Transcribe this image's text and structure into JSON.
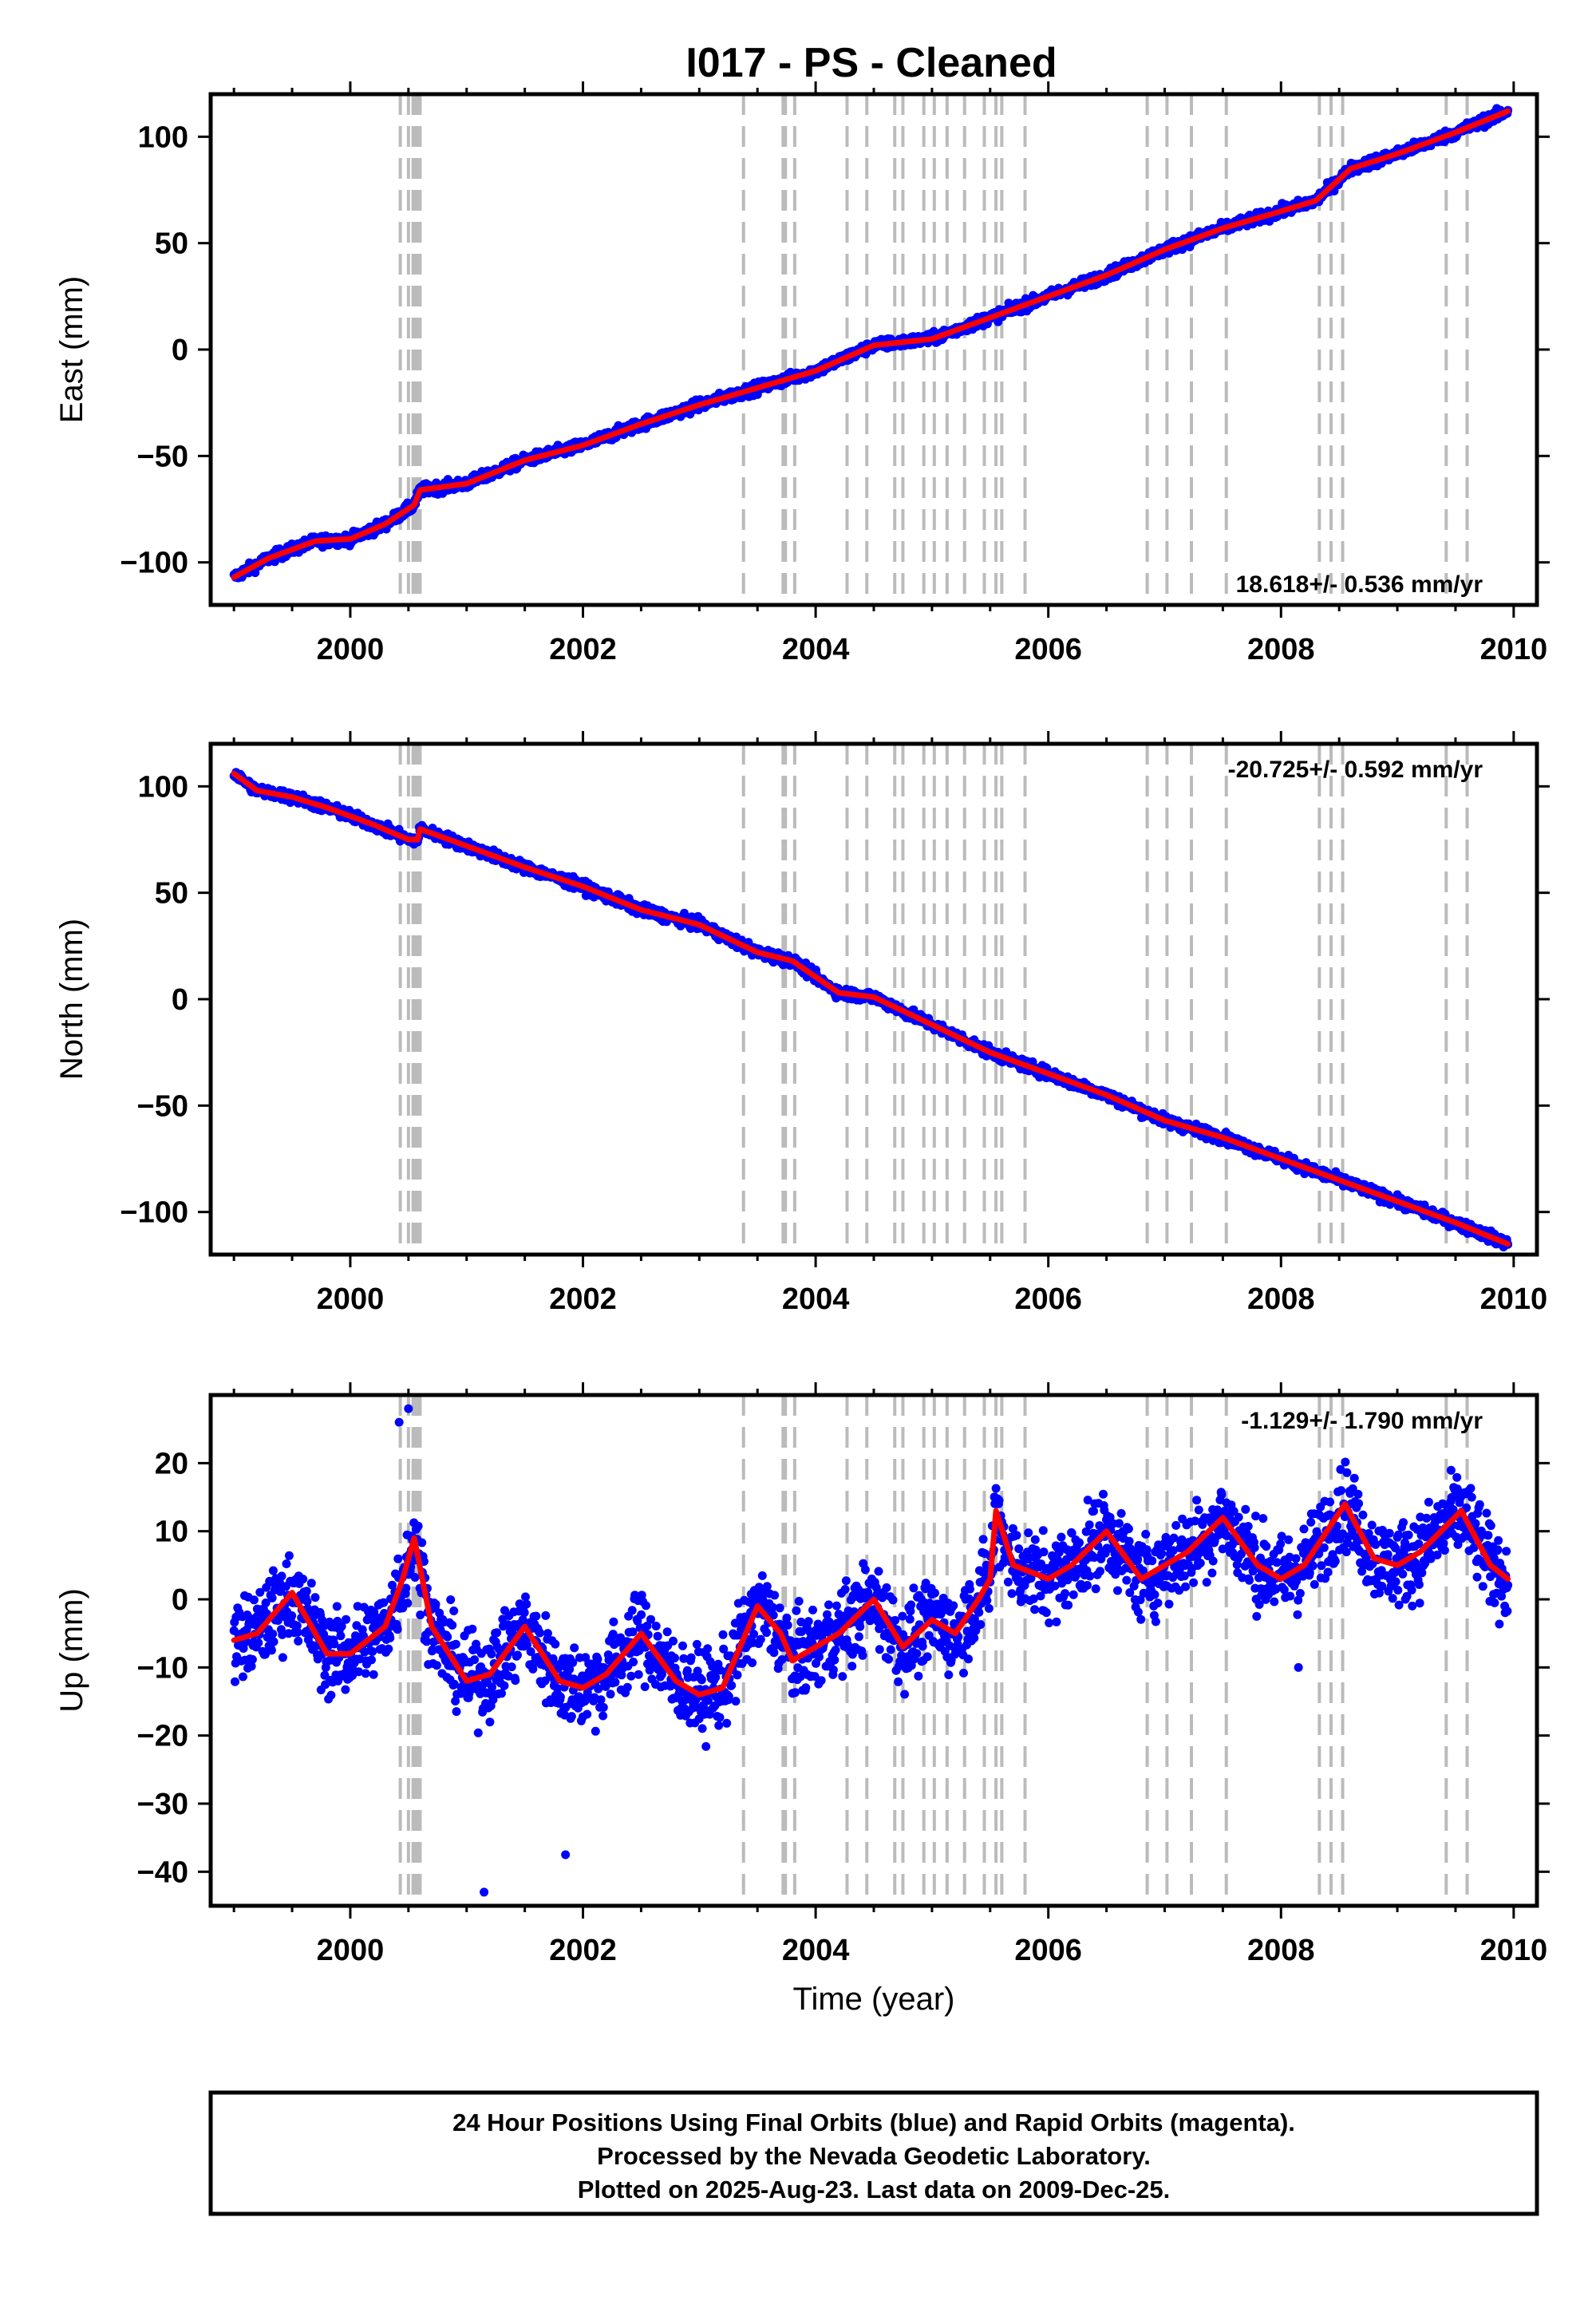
{
  "title": "I017  - PS - Cleaned",
  "colors": {
    "points": "#0000ff",
    "model": "#ff0000",
    "event_lines": "#bbbbbb",
    "frame": "#000000",
    "background": "#ffffff"
  },
  "event_lines_years": [
    2000.43,
    2000.5,
    2000.54,
    2000.56,
    2000.58,
    2000.6,
    2003.38,
    2003.72,
    2003.74,
    2003.82,
    2004.27,
    2004.44,
    2004.68,
    2004.75,
    2004.93,
    2005.02,
    2005.13,
    2005.28,
    2005.45,
    2005.55,
    2005.6,
    2005.8,
    2006.85,
    2007.02,
    2007.23,
    2007.53,
    2008.33,
    2008.43,
    2008.53,
    2009.42,
    2009.6
  ],
  "footer": {
    "line1": "24 Hour Positions Using Final Orbits (blue) and Rapid Orbits (magenta).",
    "line2": "Processed by the Nevada Geodetic Laboratory.",
    "line3": "Plotted on 2025-Aug-23. Last data on 2009-Dec-25."
  },
  "chart_data": [
    {
      "type": "scatter",
      "ylabel": "East (mm)",
      "xlabel": "",
      "rate_text": "18.618+/- 0.536 mm/yr",
      "rate_position": "bottom-right",
      "xlim": [
        1998.8,
        2010.2
      ],
      "ylim": [
        -120,
        120
      ],
      "xticks": [
        2000,
        2002,
        2004,
        2006,
        2008,
        2010
      ],
      "yticks": [
        -100,
        -50,
        0,
        50,
        100
      ],
      "series": [
        {
          "kind": "points",
          "color": "#0000ff",
          "noise_mm": 2.5,
          "x": [
            1999.0,
            1999.3,
            1999.7,
            2000.0,
            2000.3,
            2000.55,
            2000.6,
            2001.0,
            2001.5,
            2002.0,
            2002.5,
            2003.0,
            2003.5,
            2004.0,
            2004.5,
            2005.0,
            2005.5,
            2006.0,
            2006.5,
            2007.0,
            2007.5,
            2008.0,
            2008.3,
            2008.6,
            2009.0,
            2009.5,
            2009.95
          ],
          "y": [
            -107,
            -98,
            -90,
            -89,
            -82,
            -73,
            -66,
            -63,
            -52,
            -45,
            -35,
            -26,
            -18,
            -10,
            2,
            5,
            15,
            25,
            35,
            47,
            57,
            65,
            70,
            85,
            92,
            102,
            112
          ]
        },
        {
          "kind": "model",
          "color": "#ff0000",
          "x": [
            1999.0,
            1999.3,
            1999.7,
            2000.0,
            2000.3,
            2000.55,
            2000.6,
            2001.0,
            2001.5,
            2002.0,
            2002.5,
            2003.0,
            2003.5,
            2004.0,
            2004.5,
            2005.0,
            2005.5,
            2006.0,
            2006.5,
            2007.0,
            2007.5,
            2008.0,
            2008.3,
            2008.6,
            2009.0,
            2009.5,
            2009.95
          ],
          "y": [
            -107,
            -98,
            -90,
            -89,
            -82,
            -73,
            -66,
            -63,
            -52,
            -45,
            -35,
            -26,
            -18,
            -10,
            2,
            5,
            15,
            25,
            35,
            47,
            57,
            65,
            70,
            85,
            92,
            102,
            112
          ]
        }
      ]
    },
    {
      "type": "scatter",
      "ylabel": "North (mm)",
      "xlabel": "",
      "rate_text": "-20.725+/- 0.592 mm/yr",
      "rate_position": "top-right",
      "xlim": [
        1998.8,
        2010.2
      ],
      "ylim": [
        -120,
        120
      ],
      "xticks": [
        2000,
        2002,
        2004,
        2006,
        2008,
        2010
      ],
      "yticks": [
        -100,
        -50,
        0,
        50,
        100
      ],
      "series": [
        {
          "kind": "points",
          "color": "#0000ff",
          "noise_mm": 2.5,
          "x": [
            1999.0,
            1999.2,
            1999.5,
            1999.8,
            2000.2,
            2000.5,
            2000.58,
            2000.6,
            2001.0,
            2001.5,
            2002.0,
            2002.5,
            2003.0,
            2003.5,
            2003.8,
            2004.2,
            2004.5,
            2005.0,
            2005.5,
            2006.0,
            2006.5,
            2007.0,
            2007.5,
            2008.0,
            2008.5,
            2009.0,
            2009.5,
            2009.95
          ],
          "y": [
            106,
            98,
            95,
            90,
            82,
            75,
            75,
            80,
            72,
            62,
            53,
            42,
            35,
            22,
            18,
            3,
            1,
            -12,
            -25,
            -35,
            -45,
            -57,
            -65,
            -75,
            -85,
            -95,
            -105,
            -115
          ]
        },
        {
          "kind": "model",
          "color": "#ff0000",
          "x": [
            1999.0,
            1999.2,
            1999.5,
            1999.8,
            2000.2,
            2000.5,
            2000.58,
            2000.6,
            2001.0,
            2001.5,
            2002.0,
            2002.5,
            2003.0,
            2003.5,
            2003.8,
            2004.2,
            2004.5,
            2005.0,
            2005.5,
            2006.0,
            2006.5,
            2007.0,
            2007.5,
            2008.0,
            2008.5,
            2009.0,
            2009.5,
            2009.95
          ],
          "y": [
            106,
            98,
            95,
            90,
            82,
            75,
            75,
            80,
            72,
            62,
            53,
            42,
            35,
            22,
            18,
            3,
            1,
            -12,
            -25,
            -35,
            -45,
            -57,
            -65,
            -75,
            -85,
            -95,
            -105,
            -115
          ]
        }
      ]
    },
    {
      "type": "scatter",
      "ylabel": "Up (mm)",
      "xlabel": "Time (year)",
      "rate_text": "-1.129+/- 1.790 mm/yr",
      "rate_position": "top-right",
      "xlim": [
        1998.8,
        2010.2
      ],
      "ylim": [
        -45,
        30
      ],
      "xticks": [
        2000,
        2002,
        2004,
        2006,
        2008,
        2010
      ],
      "yticks": [
        -40,
        -30,
        -20,
        -10,
        0,
        10,
        20
      ],
      "series": [
        {
          "kind": "points",
          "color": "#0000ff",
          "noise_mm": 6,
          "x": [
            1999.0,
            1999.2,
            1999.5,
            1999.8,
            2000.0,
            2000.3,
            2000.45,
            2000.55,
            2000.7,
            2001.0,
            2001.2,
            2001.5,
            2001.8,
            2002.0,
            2002.2,
            2002.5,
            2002.8,
            2003.0,
            2003.2,
            2003.5,
            2003.7,
            2003.8,
            2004.0,
            2004.2,
            2004.5,
            2004.75,
            2005.0,
            2005.2,
            2005.4,
            2005.5,
            2005.55,
            2005.7,
            2006.0,
            2006.2,
            2006.5,
            2006.8,
            2007.0,
            2007.2,
            2007.5,
            2007.8,
            2008.0,
            2008.2,
            2008.55,
            2008.8,
            2009.0,
            2009.2,
            2009.55,
            2009.8,
            2009.95
          ],
          "y": [
            -6,
            -5,
            1,
            -8,
            -8,
            -4,
            3,
            9,
            -4,
            -12,
            -11,
            -4,
            -12,
            -13,
            -11,
            -5,
            -12,
            -14,
            -13,
            -1,
            -5,
            -9,
            -7,
            -5,
            0,
            -7,
            -3,
            -5,
            0,
            3,
            13,
            5,
            3,
            5,
            10,
            3,
            5,
            7,
            12,
            5,
            3,
            5,
            14,
            6,
            5,
            7,
            13,
            5,
            3
          ]
        },
        {
          "kind": "model",
          "color": "#ff0000",
          "x": [
            1999.0,
            1999.2,
            1999.5,
            1999.8,
            2000.0,
            2000.3,
            2000.45,
            2000.55,
            2000.7,
            2001.0,
            2001.2,
            2001.5,
            2001.8,
            2002.0,
            2002.2,
            2002.5,
            2002.8,
            2003.0,
            2003.2,
            2003.5,
            2003.7,
            2003.8,
            2004.0,
            2004.2,
            2004.5,
            2004.75,
            2005.0,
            2005.2,
            2005.4,
            2005.5,
            2005.55,
            2005.7,
            2006.0,
            2006.2,
            2006.5,
            2006.8,
            2007.0,
            2007.2,
            2007.5,
            2007.8,
            2008.0,
            2008.2,
            2008.55,
            2008.8,
            2009.0,
            2009.2,
            2009.55,
            2009.8,
            2009.95
          ],
          "y": [
            -6,
            -5,
            1,
            -8,
            -8,
            -4,
            3,
            9,
            -4,
            -12,
            -11,
            -4,
            -12,
            -13,
            -11,
            -5,
            -12,
            -14,
            -13,
            -1,
            -5,
            -9,
            -7,
            -5,
            0,
            -7,
            -3,
            -5,
            0,
            3,
            13,
            5,
            3,
            5,
            10,
            3,
            5,
            7,
            12,
            5,
            3,
            5,
            14,
            6,
            5,
            7,
            13,
            5,
            3
          ]
        }
      ],
      "outliers": {
        "x": [
          2001.85,
          2001.15,
          2008.15,
          2000.5,
          2000.42
        ],
        "y": [
          -37.5,
          -43,
          -10,
          28,
          26
        ]
      }
    }
  ]
}
